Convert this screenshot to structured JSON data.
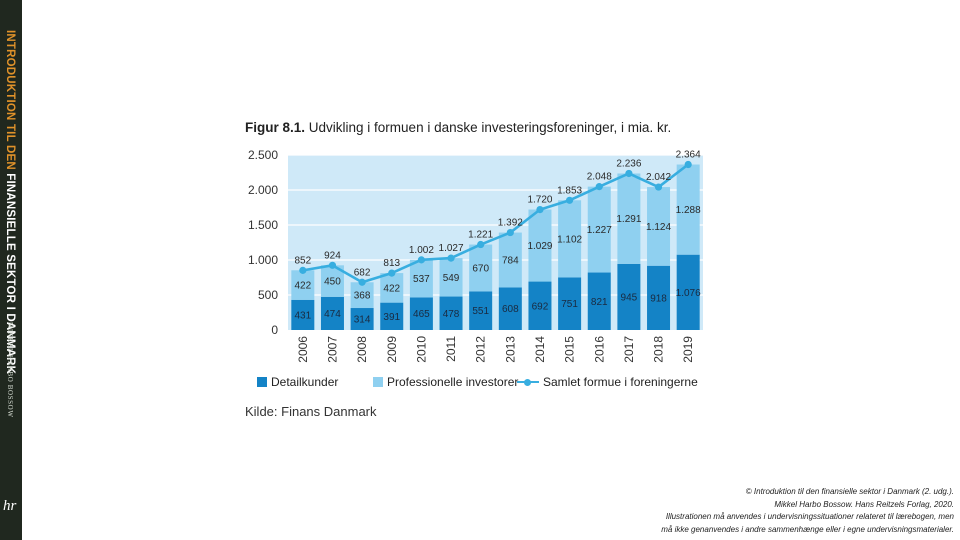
{
  "spine": {
    "title_part1": "INTRODUKTION TIL DEN",
    "title_part2": "FINANSIELLE SEKTOR I DANMARK",
    "author": "MIKKEL HARBO BOSSOW",
    "publisher_logo": "hr"
  },
  "figure": {
    "label": "Figur 8.1.",
    "title": "Udvikling i formuen i danske investeringsforeninger, i mia. kr.",
    "source": "Kilde: Finans Danmark"
  },
  "colors": {
    "detail": "#1483c6",
    "professional": "#8fd0f0",
    "line": "#38aee0",
    "plot_bg": "#cfe9f8"
  },
  "chart_data": {
    "type": "bar",
    "stacked": true,
    "categories": [
      "2006",
      "2007",
      "2008",
      "2009",
      "2010",
      "2011",
      "2012",
      "2013",
      "2014",
      "2015",
      "2016",
      "2017",
      "2018",
      "2019"
    ],
    "series": [
      {
        "name": "Detailkunder",
        "values": [
          431,
          474,
          314,
          391,
          465,
          478,
          551,
          608,
          692,
          751,
          821,
          945,
          918,
          1076
        ],
        "labels": [
          "431",
          "474",
          "314",
          "391",
          "465",
          "478",
          "551",
          "608",
          "692",
          "751",
          "821",
          "945",
          "918",
          "1.076"
        ]
      },
      {
        "name": "Professionelle investorer",
        "values": [
          422,
          450,
          368,
          422,
          537,
          549,
          670,
          784,
          1029,
          1102,
          1227,
          1291,
          1124,
          1288
        ],
        "labels": [
          "422",
          "450",
          "368",
          "422",
          "537",
          "549",
          "670",
          "784",
          "1.029",
          "1.102",
          "1.227",
          "1.291",
          "1.124",
          "1.288"
        ]
      }
    ],
    "line": {
      "name": "Samlet formue i foreningerne",
      "values": [
        852,
        924,
        682,
        813,
        1002,
        1027,
        1221,
        1392,
        1720,
        1853,
        2048,
        2236,
        2042,
        2364
      ],
      "labels": [
        "852",
        "924",
        "682",
        "813",
        "1.002",
        "1.027",
        "1.221",
        "1.392",
        "1.720",
        "1.853",
        "2.048",
        "2.236",
        "2.042",
        "2.364"
      ]
    },
    "ylim": [
      0,
      2500
    ],
    "yticks": [
      0,
      500,
      1000,
      1500,
      2000,
      2500
    ],
    "ytick_labels": [
      "0",
      "500",
      "1.000",
      "1.500",
      "2.000",
      "2.500"
    ],
    "grid": true,
    "legend": "bottom"
  },
  "copyright": {
    "line1_prefix": "©",
    "line1_book": "Introduktion til den finansielle sektor i Danmark (2. udg.).",
    "line2": "Mikkel Harbo Bossow. Hans Reitzels Forlag, 2020.",
    "line3": "Illustrationen må anvendes i undervisningssituationer relateret til lærebogen, men",
    "line4": "må ikke genanvendes i andre sammenhænge eller i egne undervisningsmaterialer."
  }
}
